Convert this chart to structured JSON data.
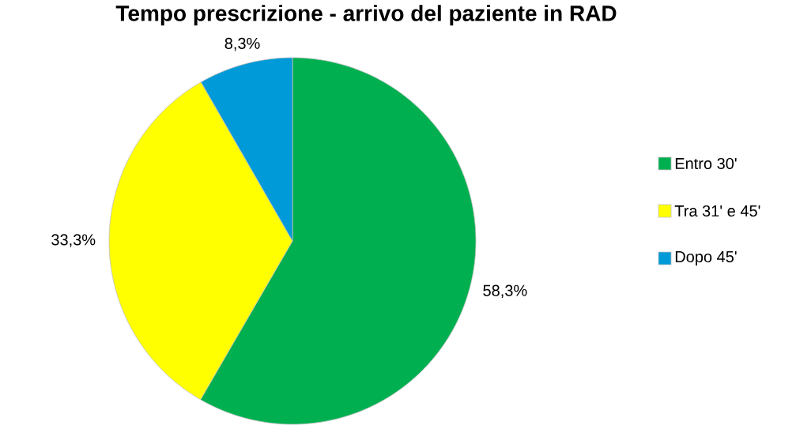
{
  "chart_data": {
    "type": "pie",
    "title": "Tempo prescrizione - arrivo del paziente in RAD",
    "categories": [
      "Entro 30'",
      "Tra 31' e 45'",
      "Dopo 45'"
    ],
    "values": [
      58.3,
      33.3,
      8.3
    ],
    "colors": [
      "#00b050",
      "#ffff00",
      "#009ad8"
    ],
    "value_labels": [
      "58,3%",
      "33,3%",
      "8,3%"
    ],
    "legend": "right"
  }
}
